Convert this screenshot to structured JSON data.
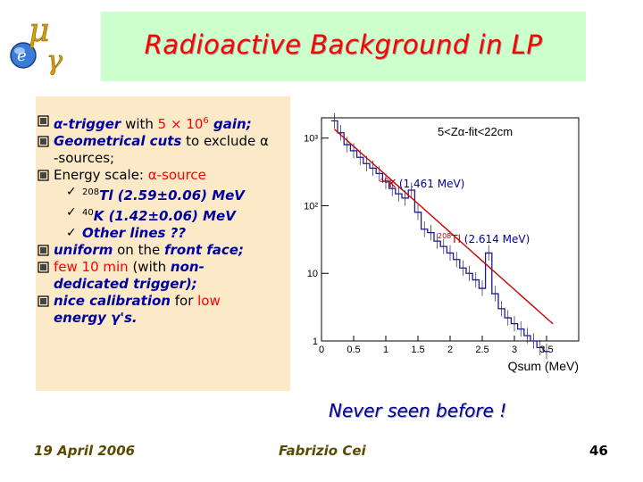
{
  "title": "Radioactive Background in LP",
  "logo": {
    "mu": "μ",
    "e": "e",
    "gamma": "γ"
  },
  "bullets": [
    {
      "parts": [
        {
          "t": "α-trigger",
          "c": "blue"
        },
        {
          "t": " with ",
          "c": "blk"
        },
        {
          "t": "5 × 10",
          "c": "red"
        },
        {
          "t": "6",
          "c": "red",
          "sup": true
        },
        {
          "t": " gain;",
          "c": "blue"
        }
      ]
    },
    {
      "parts": [
        {
          "t": "Geometrical cuts",
          "c": "blue"
        },
        {
          "t": " to exclude α",
          "c": "blk"
        }
      ]
    },
    {
      "parts": [
        {
          "t": "-sources;",
          "c": "blk"
        }
      ],
      "cont": true
    },
    {
      "parts": [
        {
          "t": "Energy scale: ",
          "c": "blk"
        },
        {
          "t": "α-source",
          "c": "red"
        }
      ]
    },
    {
      "parts": [
        {
          "t": "208",
          "c": "blk",
          "sup": true
        },
        {
          "t": "Tl (2.59±0.06) MeV",
          "c": "blue"
        }
      ],
      "sub": true
    },
    {
      "parts": [
        {
          "t": "40",
          "c": "blk",
          "sup": true
        },
        {
          "t": "K    (1.42±0.06) MeV",
          "c": "blue"
        }
      ],
      "sub": true
    },
    {
      "parts": [
        {
          "t": "Other lines ??",
          "c": "blue"
        }
      ],
      "sub": true
    },
    {
      "parts": [
        {
          "t": "uniform",
          "c": "blue"
        },
        {
          "t": " on the ",
          "c": "blk"
        },
        {
          "t": "front face;",
          "c": "blue"
        }
      ]
    },
    {
      "parts": [
        {
          "t": "few 10 min",
          "c": "red"
        },
        {
          "t": " (with ",
          "c": "blk"
        },
        {
          "t": "non-",
          "c": "blue"
        }
      ]
    },
    {
      "parts": [
        {
          "t": "dedicated trigger);",
          "c": "blue"
        }
      ],
      "cont": true
    },
    {
      "parts": [
        {
          "t": "nice calibration",
          "c": "blue"
        },
        {
          "t": " for ",
          "c": "blk"
        },
        {
          "t": "low",
          "c": "red"
        }
      ]
    },
    {
      "parts": [
        {
          "t": "energy γ's.",
          "c": "blue"
        }
      ],
      "cont": true
    }
  ],
  "tick_mark": "ü",
  "chart_data": {
    "type": "line",
    "title": "5<Zα-fit<22cm",
    "xlabel": "Qsum (MeV)",
    "ylabel": "",
    "x_ticks": [
      "0",
      "0.5",
      "1",
      "1.5",
      "2",
      "2.5",
      "3",
      "3.5"
    ],
    "y_ticks": [
      "1",
      "10",
      "10²",
      "10³"
    ],
    "xlim": [
      0,
      4
    ],
    "ylim_log10": [
      0,
      3.3
    ],
    "log_y": true,
    "annotations": [
      {
        "iso": "40",
        "elem": "K",
        "energy": "(1.461 MeV)",
        "x": 1.461
      },
      {
        "iso": "208",
        "elem": "Tl",
        "energy": "(2.614 MeV)",
        "x": 2.614
      }
    ],
    "series": [
      {
        "x": [
          0.2,
          0.3,
          0.4,
          0.5,
          0.6,
          0.7,
          0.8,
          0.9,
          1.0,
          1.1,
          1.2,
          1.3,
          1.4,
          1.5,
          1.6,
          1.7,
          1.8,
          1.9,
          2.0,
          2.1,
          2.2,
          2.3,
          2.4,
          2.5,
          2.6,
          2.7,
          2.8,
          2.9,
          3.0,
          3.1,
          3.2,
          3.3,
          3.4,
          3.5
        ],
        "y": [
          1800,
          1200,
          800,
          650,
          520,
          420,
          360,
          300,
          230,
          180,
          150,
          130,
          170,
          80,
          45,
          40,
          30,
          25,
          20,
          16,
          12,
          10,
          8,
          6,
          20,
          5,
          3,
          2.2,
          1.8,
          1.5,
          1.2,
          1.0,
          0.8,
          0.7
        ]
      }
    ]
  },
  "footer": {
    "date": "19 April 2006",
    "author": "Fabrizio Cei",
    "page": "46"
  },
  "never_seen": "Never seen before !"
}
